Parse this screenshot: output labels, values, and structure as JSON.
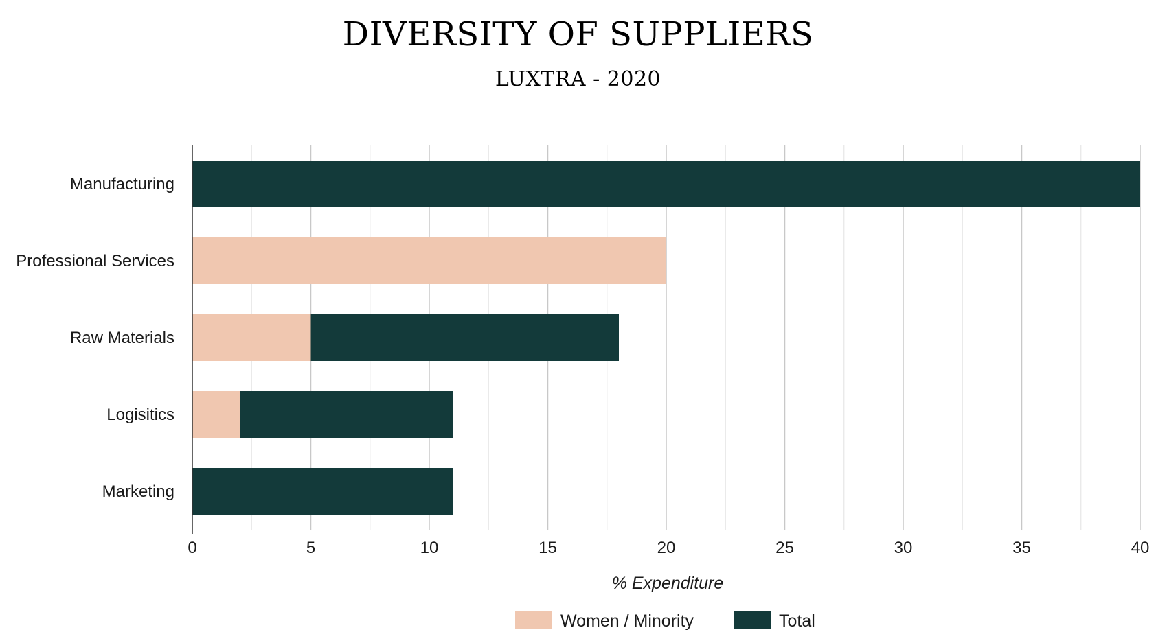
{
  "chart_data": {
    "type": "bar",
    "orientation": "horizontal",
    "stacked": true,
    "title": "DIVERSITY OF SUPPLIERS",
    "subtitle": "LUXTRA - 2020",
    "xlabel": "% Expenditure",
    "ylabel": "",
    "xlim": [
      0,
      40
    ],
    "x_ticks": [
      0,
      5,
      10,
      15,
      20,
      25,
      30,
      35,
      40
    ],
    "grid": true,
    "legend_position": "bottom",
    "categories": [
      "Manufacturing",
      "Professional Services",
      "Raw Materials",
      "Logisitics",
      "Marketing"
    ],
    "series": [
      {
        "name": "Women / Minority",
        "color": "#f0c7b0",
        "values": [
          0,
          20,
          5,
          2,
          0
        ]
      },
      {
        "name": "Total",
        "color": "#133a3a",
        "values": [
          40,
          0,
          13,
          9,
          11
        ]
      }
    ]
  }
}
